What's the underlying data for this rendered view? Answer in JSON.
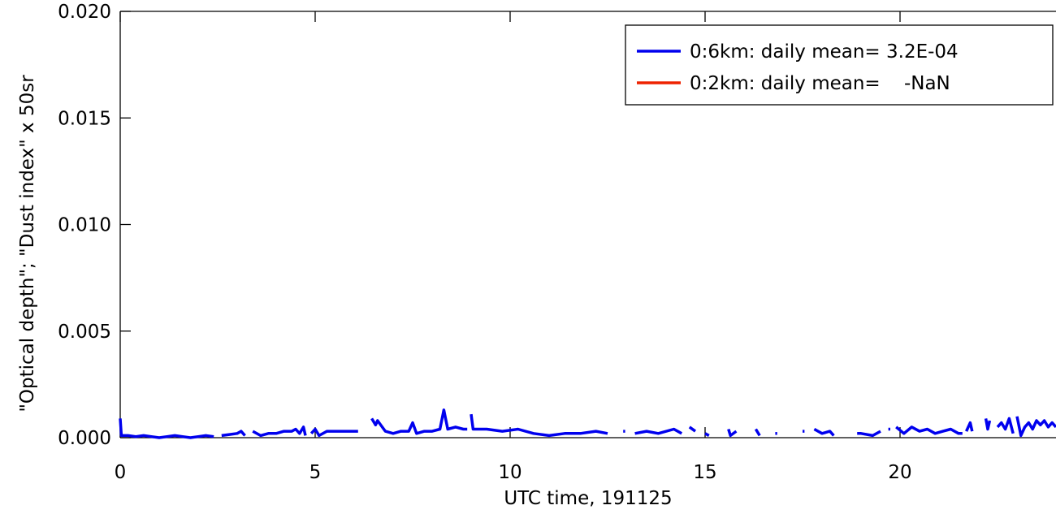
{
  "chart_data": {
    "type": "line",
    "xlabel": "UTC time, 191125",
    "ylabel": "\"Optical depth\"; \"Dust index\" x 50sr",
    "xlim": [
      0,
      24
    ],
    "ylim": [
      0,
      0.02
    ],
    "x_ticks": [
      0,
      5,
      10,
      15,
      20
    ],
    "x_tick_labels": [
      "0",
      "5",
      "10",
      "15",
      "20"
    ],
    "y_ticks": [
      0,
      0.005,
      0.01,
      0.015,
      0.02
    ],
    "y_tick_labels": [
      "0.000",
      "0.005",
      "0.010",
      "0.015",
      "0.020"
    ],
    "legend_position": "top-right",
    "grid": false,
    "series": [
      {
        "name": "0:6km: daily mean= 3.2E-04",
        "color": "#0000ee",
        "segments": [
          [
            [
              0.0,
              0.0009
            ],
            [
              0.03,
              0.0001
            ],
            [
              0.2,
              0.0001
            ],
            [
              0.4,
              5e-05
            ],
            [
              0.6,
              0.0001
            ],
            [
              0.8,
              5e-05
            ],
            [
              1.0,
              0.0
            ],
            [
              1.2,
              5e-05
            ],
            [
              1.4,
              0.0001
            ],
            [
              1.6,
              5e-05
            ],
            [
              1.8,
              0.0
            ],
            [
              2.0,
              5e-05
            ],
            [
              2.2,
              0.0001
            ],
            [
              2.4,
              5e-05
            ]
          ],
          [
            [
              2.6,
              0.0001
            ],
            [
              2.8,
              0.00015
            ],
            [
              3.0,
              0.0002
            ],
            [
              3.1,
              0.0003
            ],
            [
              3.2,
              0.0001
            ]
          ],
          [
            [
              3.4,
              0.0003
            ],
            [
              3.6,
              0.0001
            ],
            [
              3.8,
              0.0002
            ],
            [
              4.0,
              0.0002
            ],
            [
              4.2,
              0.0003
            ],
            [
              4.4,
              0.0003
            ],
            [
              4.5,
              0.0004
            ],
            [
              4.6,
              0.0002
            ],
            [
              4.7,
              0.0005
            ],
            [
              4.75,
              0.0001
            ]
          ],
          [
            [
              4.9,
              0.0002
            ],
            [
              5.0,
              0.0004
            ],
            [
              5.1,
              0.0001
            ],
            [
              5.3,
              0.0003
            ],
            [
              5.6,
              0.0003
            ],
            [
              5.8,
              0.0003
            ],
            [
              6.1,
              0.0003
            ]
          ],
          [
            [
              6.45,
              0.0009
            ],
            [
              6.55,
              0.0006
            ],
            [
              6.6,
              0.0008
            ],
            [
              6.8,
              0.0003
            ],
            [
              7.0,
              0.0002
            ],
            [
              7.2,
              0.0003
            ],
            [
              7.4,
              0.0003
            ],
            [
              7.5,
              0.0007
            ],
            [
              7.6,
              0.0002
            ],
            [
              7.8,
              0.0003
            ],
            [
              8.0,
              0.0003
            ],
            [
              8.2,
              0.0004
            ],
            [
              8.3,
              0.0013
            ],
            [
              8.4,
              0.0004
            ],
            [
              8.6,
              0.0005
            ],
            [
              8.8,
              0.0004
            ],
            [
              8.9,
              0.0004
            ]
          ],
          [
            [
              9.0,
              0.0011
            ],
            [
              9.05,
              0.0004
            ],
            [
              9.4,
              0.0004
            ],
            [
              9.8,
              0.0003
            ],
            [
              10.2,
              0.0004
            ],
            [
              10.6,
              0.0002
            ],
            [
              11.0,
              0.0001
            ],
            [
              11.4,
              0.0002
            ],
            [
              11.8,
              0.0002
            ],
            [
              12.2,
              0.0003
            ],
            [
              12.5,
              0.0002
            ]
          ],
          [
            [
              12.9,
              0.0003
            ],
            [
              12.95,
              0.0003
            ]
          ],
          [
            [
              13.2,
              0.0002
            ],
            [
              13.5,
              0.0003
            ],
            [
              13.8,
              0.0002
            ],
            [
              14.2,
              0.0004
            ],
            [
              14.4,
              0.0002
            ]
          ],
          [
            [
              14.6,
              0.0005
            ],
            [
              14.75,
              0.0003
            ]
          ],
          [
            [
              15.0,
              0.0002
            ],
            [
              15.1,
              0.0001
            ]
          ],
          [
            [
              15.6,
              0.0004
            ],
            [
              15.65,
              0.0001
            ],
            [
              15.8,
              0.0003
            ]
          ],
          [
            [
              16.3,
              0.0004
            ],
            [
              16.4,
              0.0001
            ]
          ],
          [
            [
              16.8,
              0.0002
            ],
            [
              16.85,
              0.0002
            ]
          ],
          [
            [
              17.5,
              0.0003
            ],
            [
              17.55,
              0.0003
            ]
          ],
          [
            [
              17.8,
              0.0004
            ],
            [
              18.0,
              0.0002
            ],
            [
              18.2,
              0.0003
            ],
            [
              18.3,
              0.0001
            ]
          ],
          [
            [
              18.9,
              0.0002
            ],
            [
              19.0,
              0.0002
            ],
            [
              19.3,
              0.0001
            ],
            [
              19.5,
              0.0003
            ]
          ],
          [
            [
              19.7,
              0.0004
            ],
            [
              19.75,
              0.0004
            ]
          ],
          [
            [
              19.9,
              0.0005
            ],
            [
              20.1,
              0.0002
            ],
            [
              20.3,
              0.0005
            ],
            [
              20.5,
              0.0003
            ],
            [
              20.7,
              0.0004
            ],
            [
              20.9,
              0.0002
            ],
            [
              21.1,
              0.0003
            ],
            [
              21.3,
              0.0004
            ],
            [
              21.5,
              0.0002
            ],
            [
              21.6,
              0.0002
            ]
          ],
          [
            [
              21.7,
              0.0003
            ],
            [
              21.8,
              0.0007
            ],
            [
              21.85,
              0.0003
            ]
          ],
          [
            [
              22.2,
              0.0009
            ],
            [
              22.25,
              0.0004
            ],
            [
              22.3,
              0.0008
            ]
          ],
          [
            [
              22.5,
              0.0005
            ],
            [
              22.6,
              0.0007
            ],
            [
              22.7,
              0.0004
            ],
            [
              22.8,
              0.0009
            ],
            [
              22.9,
              0.0002
            ]
          ],
          [
            [
              23.0,
              0.001
            ],
            [
              23.1,
              0.0001
            ],
            [
              23.2,
              0.0005
            ],
            [
              23.3,
              0.0007
            ],
            [
              23.4,
              0.0004
            ],
            [
              23.5,
              0.0008
            ],
            [
              23.6,
              0.0006
            ],
            [
              23.7,
              0.0008
            ],
            [
              23.8,
              0.0005
            ],
            [
              23.9,
              0.0007
            ],
            [
              24.0,
              0.0005
            ]
          ]
        ]
      },
      {
        "name": "0:2km: daily mean=    -NaN",
        "color": "#ee2200",
        "segments": []
      }
    ]
  }
}
